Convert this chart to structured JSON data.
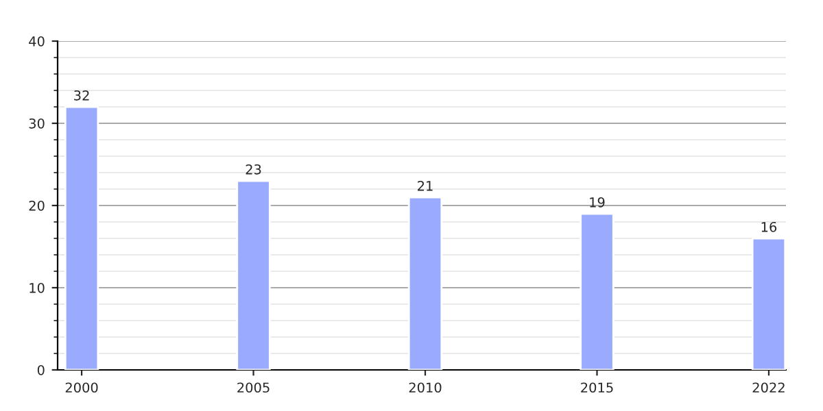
{
  "chart_data": {
    "type": "bar",
    "categories": [
      "2000",
      "2005",
      "2010",
      "2015",
      "2022"
    ],
    "values": [
      32,
      23,
      21,
      19,
      16
    ],
    "color": "#99aaff",
    "ylim": [
      0,
      40
    ],
    "yticks": [
      0,
      10,
      20,
      30,
      40
    ],
    "grid": "y",
    "data_labels": true
  }
}
